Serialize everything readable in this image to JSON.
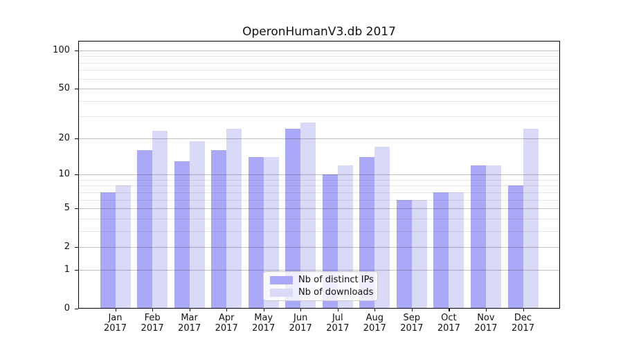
{
  "chart_data": {
    "type": "bar",
    "title": "OperonHumanV3.db 2017",
    "categories": [
      "Jan",
      "Feb",
      "Mar",
      "Apr",
      "May",
      "Jun",
      "Jul",
      "Aug",
      "Sep",
      "Oct",
      "Nov",
      "Dec"
    ],
    "year_label": "2017",
    "series": [
      {
        "name": "Nb of distinct IPs",
        "color": "#a9a9f8",
        "values": [
          7,
          16,
          13,
          16,
          14,
          24,
          10,
          14,
          6,
          7,
          12,
          8
        ]
      },
      {
        "name": "Nb of downloads",
        "color": "#d9d9f8",
        "values": [
          8,
          23,
          19,
          24,
          14,
          27,
          12,
          17,
          6,
          7,
          12,
          24
        ]
      }
    ],
    "xlabel": "",
    "ylabel": "",
    "yscale": "log1p",
    "y_major_ticks": [
      0,
      1,
      2,
      5,
      10,
      20,
      50,
      100
    ],
    "y_minor_ticks": [
      3,
      4,
      6,
      7,
      8,
      9,
      30,
      40,
      60,
      70,
      80,
      90
    ],
    "ylim": [
      0,
      119
    ],
    "grid": "both",
    "grid_above_bars": true,
    "legend_position": "lower center",
    "colors": {
      "background": "#ffffff",
      "axis": "#000000",
      "major_grid": "#c4c4c4",
      "minor_grid": "#eaeaea",
      "text": "#111111"
    }
  }
}
